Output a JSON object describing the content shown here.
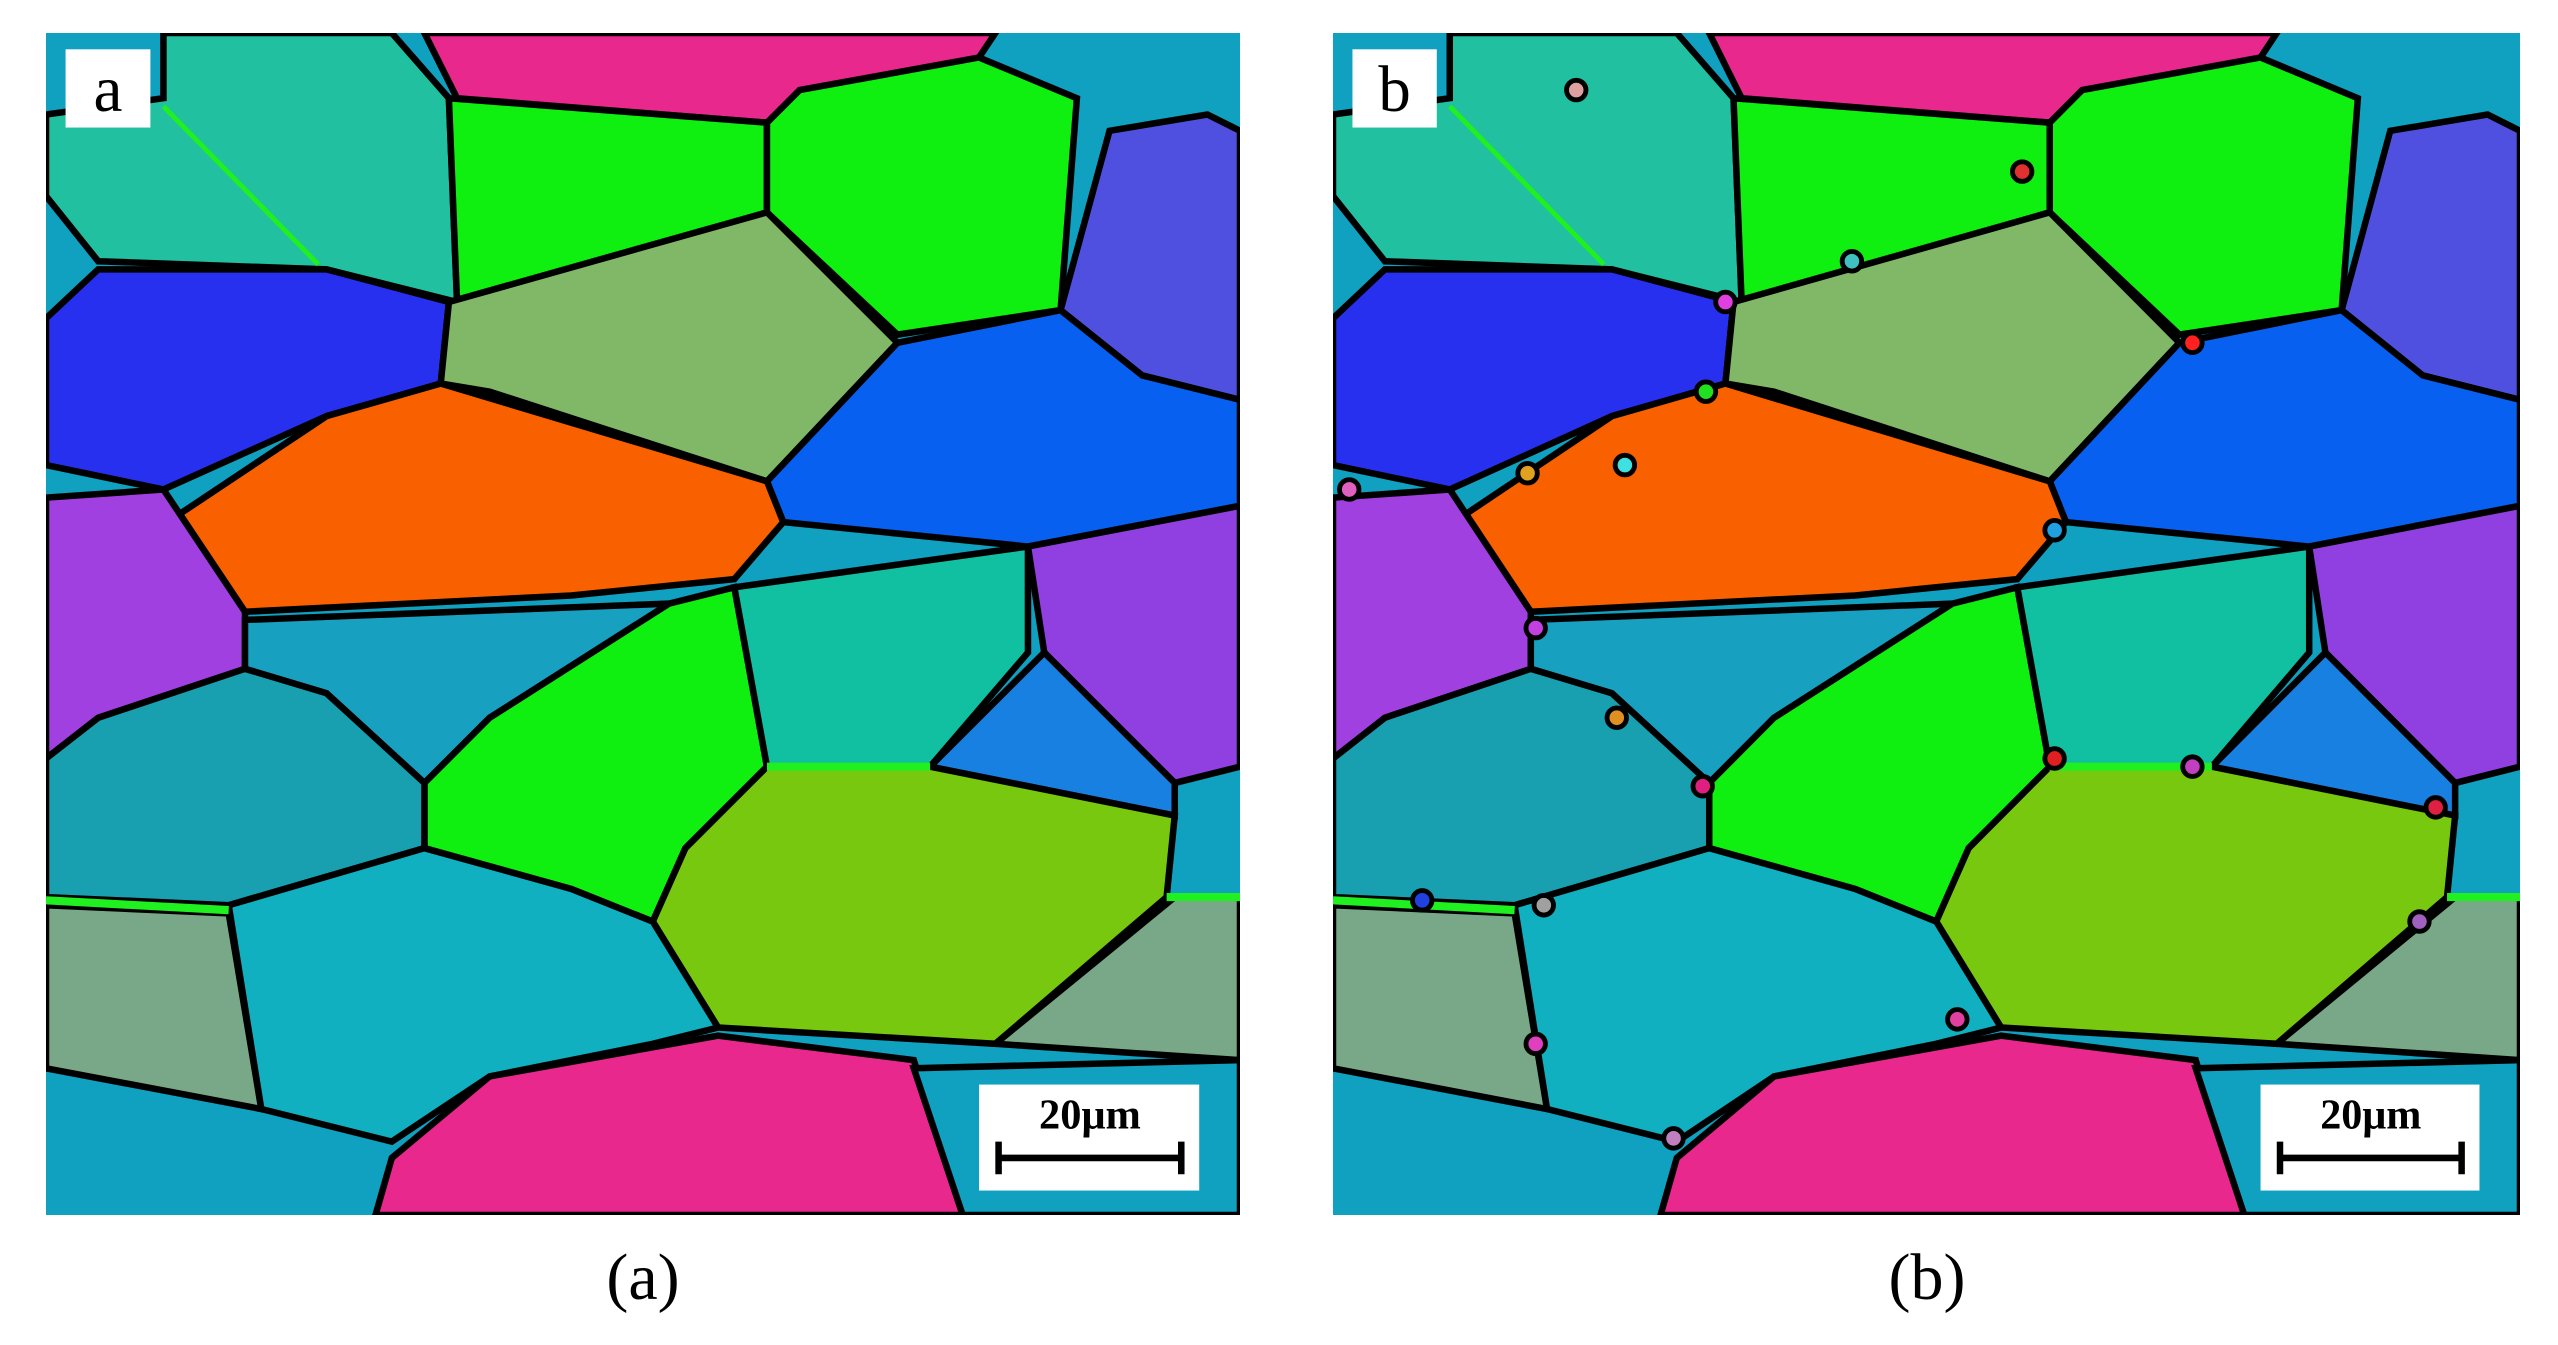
{
  "panels": [
    {
      "letter": "a",
      "scale_bar": "20μm",
      "caption": "(a)"
    },
    {
      "letter": "b",
      "scale_bar": "20μm",
      "caption": "(b)"
    }
  ]
}
